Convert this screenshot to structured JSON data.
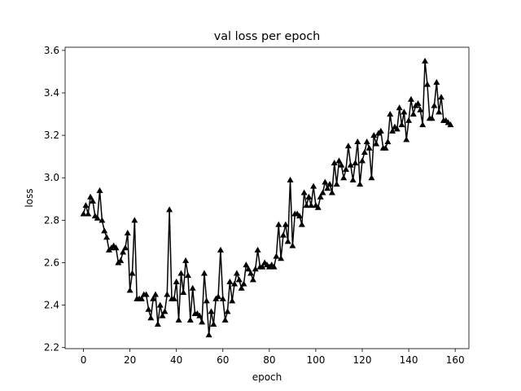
{
  "chart_data": {
    "type": "line",
    "title": "val loss per epoch",
    "x_label": "epoch",
    "y_label": "loss",
    "color": "#000000",
    "marker": "triangle-up",
    "x": [
      0,
      1,
      2,
      3,
      4,
      5,
      6,
      7,
      8,
      9,
      10,
      11,
      12,
      13,
      14,
      15,
      16,
      17,
      18,
      19,
      20,
      21,
      22,
      23,
      24,
      25,
      26,
      27,
      28,
      29,
      30,
      31,
      32,
      33,
      34,
      35,
      36,
      37,
      38,
      39,
      40,
      41,
      42,
      43,
      44,
      45,
      46,
      47,
      48,
      49,
      50,
      51,
      52,
      53,
      54,
      55,
      56,
      57,
      58,
      59,
      60,
      61,
      62,
      63,
      64,
      65,
      66,
      67,
      68,
      69,
      70,
      71,
      72,
      73,
      74,
      75,
      76,
      77,
      78,
      79,
      80,
      81,
      82,
      83,
      84,
      85,
      86,
      87,
      88,
      89,
      90,
      91,
      92,
      93,
      94,
      95,
      96,
      97,
      98,
      99,
      100,
      101,
      102,
      103,
      104,
      105,
      106,
      107,
      108,
      109,
      110,
      111,
      112,
      113,
      114,
      115,
      116,
      117,
      118,
      119,
      120,
      121,
      122,
      123,
      124,
      125,
      126,
      127,
      128,
      129,
      130,
      131,
      132,
      133,
      134,
      135,
      136,
      137,
      138,
      139,
      140,
      141,
      142,
      143,
      144,
      145,
      146,
      147,
      148,
      149,
      150,
      151,
      152,
      153,
      154,
      155,
      156,
      157,
      158
    ],
    "values": [
      2.83,
      2.87,
      2.83,
      2.91,
      2.89,
      2.82,
      2.81,
      2.94,
      2.8,
      2.75,
      2.72,
      2.66,
      2.67,
      2.68,
      2.67,
      2.6,
      2.61,
      2.65,
      2.67,
      2.74,
      2.47,
      2.55,
      2.8,
      2.43,
      2.43,
      2.43,
      2.45,
      2.45,
      2.38,
      2.34,
      2.43,
      2.45,
      2.31,
      2.4,
      2.35,
      2.37,
      2.45,
      2.85,
      2.43,
      2.43,
      2.51,
      2.33,
      2.55,
      2.46,
      2.61,
      2.54,
      2.33,
      2.48,
      2.36,
      2.36,
      2.35,
      2.32,
      2.55,
      2.42,
      2.26,
      2.37,
      2.31,
      2.43,
      2.44,
      2.66,
      2.43,
      2.33,
      2.37,
      2.51,
      2.42,
      2.5,
      2.55,
      2.52,
      2.48,
      2.5,
      2.59,
      2.57,
      2.55,
      2.52,
      2.57,
      2.66,
      2.58,
      2.58,
      2.6,
      2.59,
      2.58,
      2.59,
      2.58,
      2.63,
      2.78,
      2.62,
      2.73,
      2.78,
      2.7,
      2.99,
      2.68,
      2.83,
      2.83,
      2.82,
      2.78,
      2.93,
      2.87,
      2.91,
      2.87,
      2.96,
      2.87,
      2.86,
      2.91,
      2.93,
      2.98,
      2.95,
      2.97,
      2.93,
      3.07,
      2.97,
      3.08,
      3.06,
      3.0,
      3.04,
      3.15,
      3.06,
      2.99,
      3.07,
      3.17,
      2.97,
      3.08,
      3.12,
      3.17,
      3.14,
      3.0,
      3.2,
      3.16,
      3.21,
      3.22,
      3.14,
      3.14,
      3.17,
      3.3,
      3.22,
      3.24,
      3.23,
      3.33,
      3.25,
      3.31,
      3.18,
      3.27,
      3.37,
      3.3,
      3.34,
      3.35,
      3.32,
      3.25,
      3.55,
      3.44,
      3.28,
      3.28,
      3.34,
      3.45,
      3.31,
      3.38,
      3.27,
      3.27,
      3.26,
      3.25
    ],
    "xlim": [
      -7.9,
      165.9
    ],
    "xticks": [
      0,
      20,
      40,
      60,
      80,
      100,
      120,
      140,
      160
    ],
    "ylim": [
      2.195,
      3.615
    ],
    "yticks": [
      2.2,
      2.4,
      2.6,
      2.8,
      {
        "value": 3,
        "label": "3.0"
      },
      3.2,
      3.4,
      3.6
    ],
    "grid": false
  }
}
